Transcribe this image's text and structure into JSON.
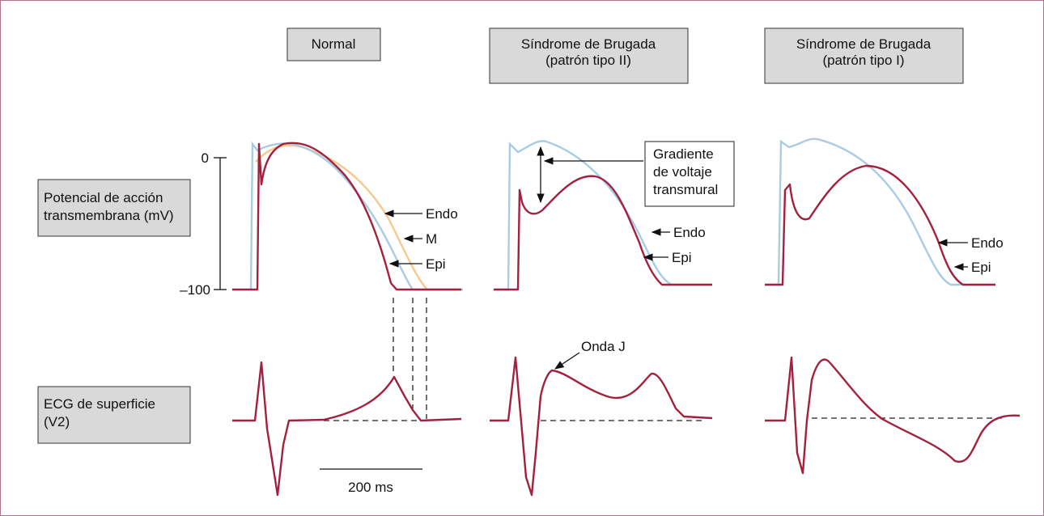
{
  "columns": [
    {
      "title": [
        "Normal"
      ]
    },
    {
      "title": [
        "Síndrome de Brugada",
        "(patrón tipo II)"
      ]
    },
    {
      "title": [
        "Síndrome de Brugada",
        "(patrón tipo I)"
      ]
    }
  ],
  "row_labels": {
    "action_potential": [
      "Potencial de acción",
      "transmembrana (mV)"
    ],
    "ecg": [
      "ECG de superficie",
      "(V2)"
    ]
  },
  "axis_labels": [
    "0",
    "–100"
  ],
  "annotations": {
    "normal": [
      "Endo",
      "M",
      "Epi"
    ],
    "type_ii": {
      "gradient": [
        "Gradiente",
        "de voltaje",
        "transmural"
      ],
      "endo": "Endo",
      "epi": "Epi",
      "j_wave": "Onda J"
    },
    "type_i": [
      "Endo",
      "Epi"
    ],
    "scale_bar": "200 ms"
  }
}
